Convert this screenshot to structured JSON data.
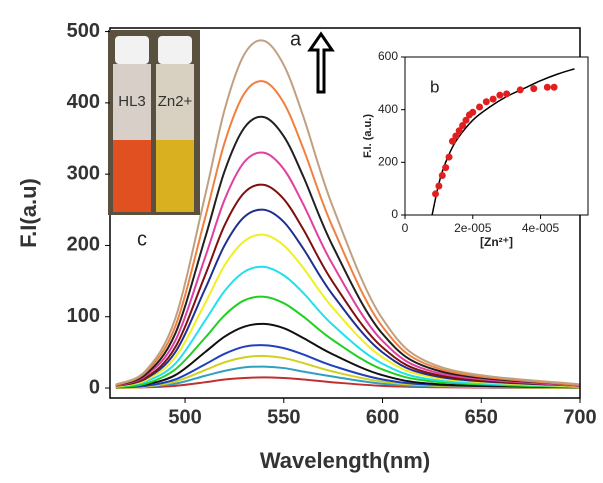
{
  "chart_data": [
    {
      "type": "line",
      "x_label": "Wavelength(nm)",
      "y_label": "F.I(a.u)",
      "x": [
        465,
        480,
        495,
        510,
        520,
        530,
        540,
        550,
        560,
        575,
        600,
        630,
        700
      ],
      "xlim": [
        462,
        700
      ],
      "xticks": [
        500,
        550,
        600,
        650,
        700
      ],
      "ylim": [
        -14,
        505
      ],
      "yticks": [
        0,
        100,
        200,
        300,
        400,
        500
      ],
      "annotations": [
        "a",
        "c"
      ],
      "photo_labels": [
        "HL3",
        "Zn2+"
      ],
      "series": [
        {
          "color": "#c03030",
          "values": [
            0,
            1,
            3,
            8,
            12,
            14,
            15,
            14,
            12,
            8,
            3,
            1,
            0
          ]
        },
        {
          "color": "#30a0c0",
          "values": [
            0,
            2,
            6,
            17,
            24,
            29,
            30,
            28,
            23,
            16,
            6,
            2,
            0
          ]
        },
        {
          "color": "#d0d020",
          "values": [
            0,
            2,
            9,
            25,
            36,
            43,
            45,
            42,
            35,
            23,
            9,
            3,
            0
          ]
        },
        {
          "color": "#2040c0",
          "values": [
            1,
            3,
            12,
            33,
            48,
            58,
            60,
            56,
            47,
            31,
            12,
            4,
            1
          ]
        },
        {
          "color": "#101010",
          "values": [
            1,
            5,
            18,
            50,
            72,
            86,
            90,
            84,
            70,
            47,
            18,
            5,
            1
          ]
        },
        {
          "color": "#20d020",
          "values": [
            1,
            6,
            26,
            70,
            102,
            123,
            128,
            119,
            100,
            67,
            26,
            8,
            1
          ]
        },
        {
          "color": "#20e0f0",
          "values": [
            2,
            9,
            34,
            94,
            136,
            163,
            170,
            158,
            133,
            88,
            34,
            10,
            2
          ]
        },
        {
          "color": "#f0f020",
          "values": [
            2,
            11,
            43,
            118,
            172,
            206,
            215,
            200,
            168,
            112,
            43,
            13,
            2
          ]
        },
        {
          "color": "#203090",
          "values": [
            3,
            13,
            50,
            138,
            200,
            240,
            250,
            233,
            195,
            130,
            50,
            15,
            3
          ]
        },
        {
          "color": "#801010",
          "values": [
            3,
            14,
            57,
            157,
            228,
            274,
            285,
            265,
            222,
            148,
            57,
            17,
            3
          ]
        },
        {
          "color": "#e040a0",
          "values": [
            3,
            17,
            66,
            182,
            264,
            317,
            330,
            307,
            257,
            172,
            66,
            20,
            3
          ]
        },
        {
          "color": "#202020",
          "values": [
            4,
            19,
            76,
            209,
            304,
            365,
            380,
            353,
            296,
            198,
            76,
            23,
            4
          ]
        },
        {
          "color": "#f08040",
          "values": [
            4,
            22,
            86,
            237,
            344,
            413,
            430,
            400,
            335,
            224,
            86,
            26,
            4
          ]
        },
        {
          "color": "#c0a080",
          "values": [
            5,
            24,
            97,
            268,
            390,
            468,
            487,
            453,
            380,
            253,
            97,
            29,
            5
          ]
        }
      ]
    },
    {
      "type": "scatter",
      "x_label": "[Zn²⁺]",
      "y_label": "F.I. (a.u.)",
      "annotation": "b",
      "xlim": [
        0,
        5.4e-05
      ],
      "xticks": [
        0,
        {
          "value": 2e-05,
          "label": "2e-005"
        },
        {
          "value": 4e-05,
          "label": "4e-005"
        }
      ],
      "ylim": [
        0,
        600
      ],
      "yticks": [
        0,
        200,
        400,
        600
      ],
      "points": {
        "color": "#e02020",
        "x": [
          9e-06,
          1e-05,
          1.1e-05,
          1.2e-05,
          1.3e-05,
          1.4e-05,
          1.5e-05,
          1.6e-05,
          1.7e-05,
          1.8e-05,
          1.9e-05,
          2e-05,
          2.2e-05,
          2.4e-05,
          2.6e-05,
          2.8e-05,
          3e-05,
          3.4e-05,
          3.8e-05,
          4.2e-05,
          4.4e-05
        ],
        "values": [
          80,
          110,
          150,
          180,
          220,
          280,
          300,
          320,
          340,
          360,
          380,
          390,
          410,
          430,
          440,
          455,
          460,
          475,
          480,
          485,
          485
        ]
      },
      "fit": {
        "color": "#000000",
        "x": [
          8e-06,
          1e-05,
          1.2e-05,
          1.5e-05,
          2e-05,
          2.5e-05,
          3e-05,
          3.5e-05,
          4e-05,
          4.5e-05,
          5e-05
        ],
        "values": [
          0,
          120,
          200,
          280,
          360,
          410,
          450,
          480,
          510,
          535,
          555
        ]
      }
    }
  ]
}
